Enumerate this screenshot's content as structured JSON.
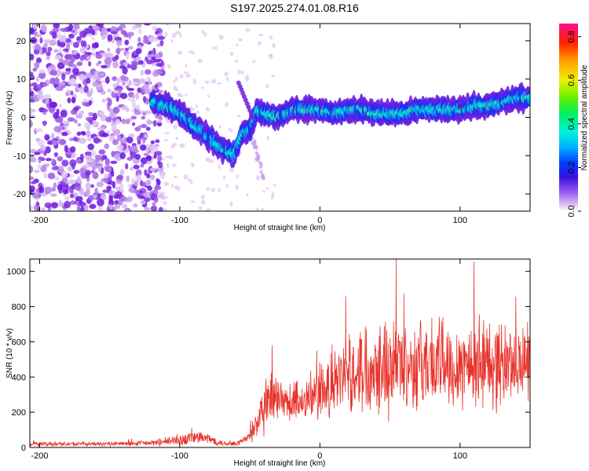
{
  "title": "S197.2025.274.01.08.R16",
  "chart_data": [
    {
      "type": "heatmap",
      "title": "S197.2025.274.01.08.R16",
      "xlabel": "Height of straight line (km)",
      "ylabel": "Frequency (Hz)",
      "xlim": [
        -207,
        150
      ],
      "ylim": [
        -24.5,
        24.5
      ],
      "xticks": [
        -200,
        -100,
        0,
        100
      ],
      "yticks": [
        -20,
        -10,
        0,
        10,
        20
      ],
      "colorbar": {
        "label": "Normalized spectral amplitude",
        "range": [
          0,
          0.86
        ],
        "ticks": [
          0.0,
          0.2,
          0.4,
          0.6,
          0.8
        ]
      },
      "ridge": {
        "description": "main tonal ridge (center frequency vs height)",
        "x": [
          -120,
          -110,
          -100,
          -90,
          -80,
          -70,
          -62,
          -55,
          -50,
          -45,
          -40,
          -30,
          -20,
          -10,
          0,
          10,
          20,
          30,
          40,
          50,
          60,
          70,
          80,
          90,
          100,
          110,
          120,
          130,
          140,
          150
        ],
        "y": [
          4,
          3,
          1,
          -2,
          -5,
          -8,
          -10,
          -4,
          -3,
          2,
          1,
          0,
          2,
          2,
          2,
          1,
          2,
          2,
          1,
          1,
          1,
          2,
          2,
          2,
          2,
          3,
          3,
          4,
          5,
          5
        ]
      }
    },
    {
      "type": "line",
      "xlabel": "Height of straight line (km)",
      "ylabel": "SNR (10 * v/v)",
      "xlim": [
        -207,
        150
      ],
      "ylim": [
        0,
        1070
      ],
      "xticks": [
        -200,
        -100,
        0,
        100
      ],
      "yticks": [
        0,
        200,
        400,
        600,
        800,
        1000
      ],
      "color": "#e8322b",
      "envelope": {
        "x": [
          -207,
          -150,
          -120,
          -100,
          -90,
          -80,
          -70,
          -60,
          -50,
          -40,
          -35,
          -30,
          -20,
          -10,
          0,
          10,
          20,
          30,
          40,
          50,
          60,
          70,
          80,
          90,
          100,
          110,
          120,
          130,
          140,
          150
        ],
        "mean": [
          20,
          20,
          25,
          40,
          60,
          50,
          25,
          20,
          60,
          200,
          280,
          250,
          250,
          280,
          300,
          350,
          420,
          450,
          480,
          470,
          480,
          470,
          480,
          470,
          480,
          470,
          480,
          470,
          480,
          480
        ],
        "spread": [
          15,
          15,
          20,
          40,
          50,
          40,
          20,
          15,
          40,
          180,
          200,
          170,
          150,
          150,
          200,
          220,
          250,
          300,
          320,
          350,
          300,
          300,
          320,
          300,
          300,
          320,
          320,
          300,
          250,
          250
        ]
      }
    }
  ]
}
